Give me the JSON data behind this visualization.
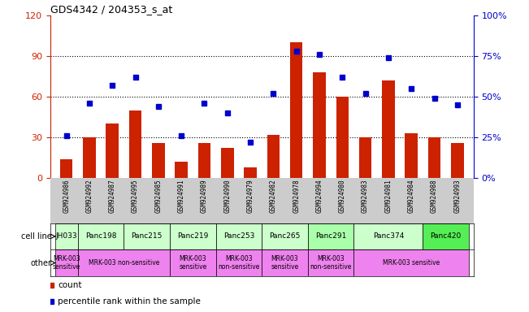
{
  "title": "GDS4342 / 204353_s_at",
  "samples": [
    "GSM924986",
    "GSM924992",
    "GSM924987",
    "GSM924995",
    "GSM924985",
    "GSM924991",
    "GSM924989",
    "GSM924990",
    "GSM924979",
    "GSM924982",
    "GSM924978",
    "GSM924994",
    "GSM924980",
    "GSM924983",
    "GSM924981",
    "GSM924984",
    "GSM924988",
    "GSM924993"
  ],
  "counts": [
    14,
    30,
    40,
    50,
    26,
    12,
    26,
    22,
    8,
    32,
    100,
    78,
    60,
    30,
    72,
    33,
    30,
    26
  ],
  "percentiles": [
    26,
    46,
    57,
    62,
    44,
    26,
    46,
    40,
    22,
    52,
    78,
    76,
    62,
    52,
    74,
    55,
    49,
    45
  ],
  "cell_lines": [
    {
      "name": "JH033",
      "start": 0,
      "end": 1,
      "color": "#ccffcc"
    },
    {
      "name": "Panc198",
      "start": 1,
      "end": 3,
      "color": "#ccffcc"
    },
    {
      "name": "Panc215",
      "start": 3,
      "end": 5,
      "color": "#ccffcc"
    },
    {
      "name": "Panc219",
      "start": 5,
      "end": 7,
      "color": "#ccffcc"
    },
    {
      "name": "Panc253",
      "start": 7,
      "end": 9,
      "color": "#ccffcc"
    },
    {
      "name": "Panc265",
      "start": 9,
      "end": 11,
      "color": "#ccffcc"
    },
    {
      "name": "Panc291",
      "start": 11,
      "end": 13,
      "color": "#aaffaa"
    },
    {
      "name": "Panc374",
      "start": 13,
      "end": 16,
      "color": "#ccffcc"
    },
    {
      "name": "Panc420",
      "start": 16,
      "end": 18,
      "color": "#55ee55"
    }
  ],
  "other_rows": [
    {
      "label": "MRK-003\nsensitive",
      "start": 0,
      "end": 1,
      "color": "#ee82ee"
    },
    {
      "label": "MRK-003 non-sensitive",
      "start": 1,
      "end": 5,
      "color": "#ee82ee"
    },
    {
      "label": "MRK-003\nsensitive",
      "start": 5,
      "end": 7,
      "color": "#ee82ee"
    },
    {
      "label": "MRK-003\nnon-sensitive",
      "start": 7,
      "end": 9,
      "color": "#ee82ee"
    },
    {
      "label": "MRK-003\nsensitive",
      "start": 9,
      "end": 11,
      "color": "#ee82ee"
    },
    {
      "label": "MRK-003\nnon-sensitive",
      "start": 11,
      "end": 13,
      "color": "#ee82ee"
    },
    {
      "label": "MRK-003 sensitive",
      "start": 13,
      "end": 18,
      "color": "#ee82ee"
    }
  ],
  "ylim_left": [
    0,
    120
  ],
  "ylim_right": [
    0,
    100
  ],
  "yticks_left": [
    0,
    30,
    60,
    90,
    120
  ],
  "yticks_right": [
    0,
    25,
    50,
    75,
    100
  ],
  "ytick_labels_right": [
    "0%",
    "25%",
    "50%",
    "75%",
    "100%"
  ],
  "bar_color": "#cc2200",
  "dot_color": "#0000cc",
  "left_axis_color": "#cc2200",
  "right_axis_color": "#0000cc",
  "tick_bg_color": "#cccccc",
  "fig_width": 6.51,
  "fig_height": 3.84,
  "dpi": 100
}
